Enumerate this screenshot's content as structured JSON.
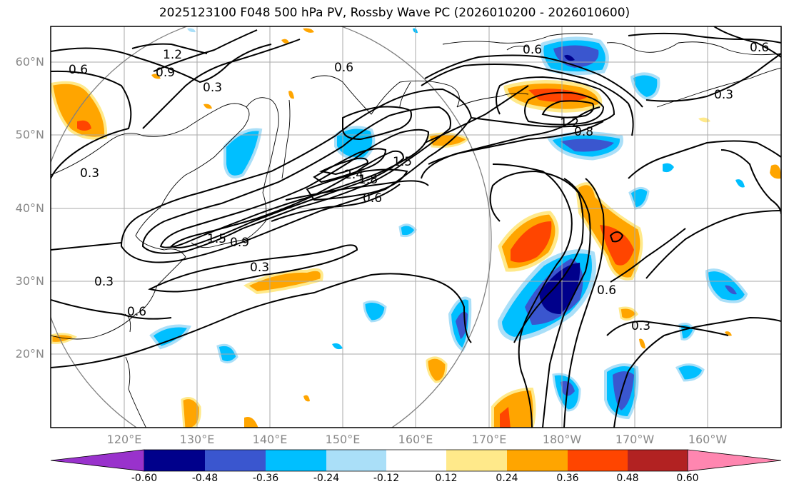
{
  "title": "2025123100 F048 500 hPa PV, Rossby Wave PC (2026010200 - 2026010600)",
  "lat_labels": [
    "60°N",
    "50°N",
    "40°N",
    "30°N",
    "20°N"
  ],
  "lon_labels": [
    "120°E",
    "130°E",
    "140°E",
    "150°E",
    "160°E",
    "170°E",
    "180°W",
    "170°W",
    "160°W"
  ],
  "contour_labels": [
    "1.2",
    "0.9",
    "0.6",
    "0.3",
    "0.6",
    "0.6",
    "0.6",
    "1.2",
    "0.8",
    "0.3",
    "1.5",
    "2.4",
    "1.8",
    "0.6",
    "0.9",
    "1.5",
    "0.3",
    "0.3",
    "0.6",
    "0.6",
    "0.3",
    "0.3"
  ],
  "colorbar": {
    "levels": [
      "-0.60",
      "-0.48",
      "-0.36",
      "-0.24",
      "-0.12",
      "0.12",
      "0.24",
      "0.36",
      "0.48",
      "0.60"
    ],
    "colors": [
      "#9932cc",
      "#00008b",
      "#3a56cf",
      "#00bfff",
      "#aadff8",
      "#ffffff",
      "#ffe98a",
      "#ffa500",
      "#ff4500",
      "#b22222",
      "#ff86b0"
    ]
  }
}
